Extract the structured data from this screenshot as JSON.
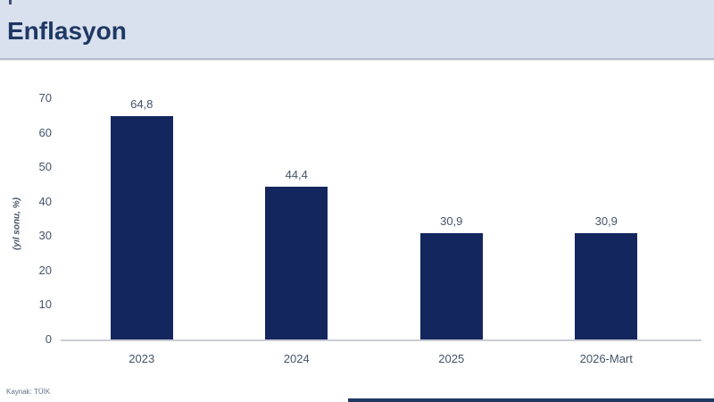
{
  "header": {
    "title": "Enflasyon"
  },
  "footer": {
    "source": "Kaynak: TÜİK"
  },
  "colors": {
    "header_background": "#d9e1ee",
    "title_text": "#1f3864",
    "bar_fill": "#14265e",
    "axis_text": "#44546a",
    "axis_line": "#c9cdd3",
    "footer_bar": "#1f3864",
    "source_text": "#64718b"
  },
  "chart_data": {
    "type": "bar",
    "title": "Enflasyon",
    "categories": [
      "2023",
      "2024",
      "2025",
      "2026-Mart"
    ],
    "values": [
      64.8,
      44.4,
      30.9,
      30.9
    ],
    "value_labels": [
      "64,8",
      "44,4",
      "30,9",
      "30,9"
    ],
    "xlabel": "",
    "ylabel": "(yıl sonu, %)",
    "ylim": [
      0,
      70
    ],
    "yticks": [
      0,
      10,
      20,
      30,
      40,
      50,
      60,
      70
    ],
    "grid": false,
    "legend": false,
    "bar_color": "#14265e",
    "label_color": "#44546a"
  }
}
